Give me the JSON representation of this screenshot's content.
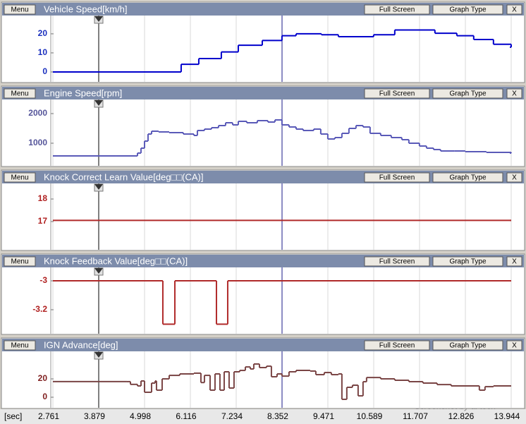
{
  "time_axis": {
    "label": "[sec]",
    "xlim": [
      2.761,
      13.944
    ],
    "xticks": [
      2.761,
      3.879,
      4.998,
      6.116,
      7.234,
      8.352,
      9.471,
      10.589,
      11.707,
      12.826,
      13.944
    ]
  },
  "watermark": "Screenshot by al tech",
  "chart_data": [
    {
      "type": "line",
      "step": true,
      "menu": "Menu",
      "title": "Vehicle Speed[km/h]",
      "buttons": [
        "Full Screen",
        "Graph Type",
        "X"
      ],
      "color": "#0000cc",
      "tick_color": "#1a2fbf",
      "ylim": [
        -5.2,
        29.6
      ],
      "yticks": [
        0,
        10,
        20
      ],
      "grid": true,
      "x": [
        2.761,
        5.891,
        6.321,
        6.871,
        7.285,
        7.87,
        8.351,
        8.695,
        9.314,
        9.727,
        10.587,
        11.103,
        12.083,
        12.617,
        13.029,
        13.511,
        13.944
      ],
      "values": [
        0,
        4,
        7,
        10.5,
        14,
        16.5,
        19,
        20,
        19.5,
        18.5,
        19.5,
        22,
        20.3,
        19,
        17,
        14.5,
        13
      ]
    },
    {
      "type": "line",
      "step": true,
      "menu": "Menu",
      "title": "Engine Speed[rpm]",
      "buttons": [
        "Full Screen",
        "Graph Type",
        "X"
      ],
      "color": "#5a5ab8",
      "tick_color": "#55559a",
      "ylim": [
        238,
        2476
      ],
      "yticks": [
        1000,
        2000
      ],
      "grid": true,
      "x": [
        2.761,
        4.309,
        4.825,
        4.911,
        4.997,
        5.083,
        5.169,
        5.341,
        5.599,
        5.943,
        6.201,
        6.287,
        6.459,
        6.631,
        6.803,
        6.975,
        7.147,
        7.285,
        7.491,
        7.749,
        8.007,
        8.179,
        8.351,
        8.523,
        8.695,
        8.867,
        9.125,
        9.297,
        9.469,
        9.641,
        9.813,
        9.985,
        10.157,
        10.329,
        10.501,
        10.759,
        11.017,
        11.275,
        11.447,
        11.705,
        11.877,
        12.049,
        12.221,
        12.565,
        12.823,
        13.339,
        13.944
      ],
      "values": [
        571,
        571,
        667,
        833,
        1071,
        1310,
        1405,
        1381,
        1357,
        1310,
        1262,
        1429,
        1476,
        1524,
        1595,
        1690,
        1619,
        1738,
        1690,
        1762,
        1714,
        1786,
        1619,
        1548,
        1476,
        1429,
        1476,
        1310,
        1143,
        1190,
        1333,
        1500,
        1595,
        1548,
        1333,
        1262,
        1190,
        1119,
        1000,
        905,
        833,
        786,
        738,
        738,
        714,
        690,
        667
      ]
    },
    {
      "type": "line",
      "step": true,
      "menu": "Menu",
      "title": "Knock Correct Learn Value[deg□□(CA)]",
      "buttons": [
        "Full Screen",
        "Graph Type",
        "X"
      ],
      "color": "#b02a2a",
      "tick_color": "#b02020",
      "ylim": [
        15.75,
        18.69
      ],
      "yticks": [
        17,
        18
      ],
      "grid": true,
      "x": [
        2.761,
        13.944
      ],
      "values": [
        17.05,
        17.05
      ]
    },
    {
      "type": "line",
      "step": true,
      "menu": "Menu",
      "title": "Knock Feedback Value[deg□□(CA)]",
      "buttons": [
        "Full Screen",
        "Graph Type",
        "X"
      ],
      "color": "#b02a2a",
      "tick_color": "#b02020",
      "ylim": [
        -3.366,
        -2.907
      ],
      "yticks": [
        -3.2,
        -3
      ],
      "grid": true,
      "x": [
        2.761,
        5.444,
        5.737,
        6.752,
        7.027,
        13.944
      ],
      "values": [
        -3,
        -3.3,
        -3,
        -3.3,
        -3,
        -3
      ]
    },
    {
      "type": "line",
      "step": true,
      "menu": "Menu",
      "title": "IGN Advance[deg]",
      "buttons": [
        "Full Screen",
        "Graph Type",
        "X"
      ],
      "color": "#7a4545",
      "tick_color": "#802020",
      "ylim": [
        -11.5,
        50
      ],
      "yticks": [
        0,
        20
      ],
      "grid": true,
      "x": [
        2.761,
        4.567,
        4.653,
        4.825,
        4.911,
        4.997,
        5.169,
        5.255,
        5.289,
        5.427,
        5.599,
        5.857,
        6.201,
        6.373,
        6.459,
        6.597,
        6.717,
        6.837,
        6.941,
        7.061,
        7.181,
        7.319,
        7.457,
        7.577,
        7.663,
        7.801,
        7.973,
        8.093,
        8.231,
        8.351,
        8.523,
        8.695,
        9.039,
        9.177,
        9.383,
        9.555,
        9.727,
        9.813,
        9.933,
        10.071,
        10.209,
        10.329,
        10.415,
        10.759,
        11.103,
        11.447,
        11.791,
        12.135,
        12.479,
        13.167,
        13.305,
        13.511,
        13.944
      ],
      "values": [
        17,
        17,
        14,
        12.3,
        17.7,
        5.4,
        15.4,
        17.7,
        7.7,
        20,
        23.8,
        25.4,
        26.2,
        16,
        23.8,
        7.7,
        25.4,
        7.7,
        27.7,
        10,
        27.7,
        29.2,
        33,
        30.8,
        36.2,
        32.3,
        33.8,
        22.3,
        25.4,
        23,
        27.7,
        29.2,
        28.5,
        24.6,
        26.9,
        24.6,
        25.4,
        -2.3,
        10.8,
        13.1,
        1.5,
        16.9,
        21.5,
        20,
        18.5,
        16.9,
        15.4,
        13.8,
        12.3,
        7.7,
        11.5,
        12.3,
        12.3
      ]
    }
  ]
}
